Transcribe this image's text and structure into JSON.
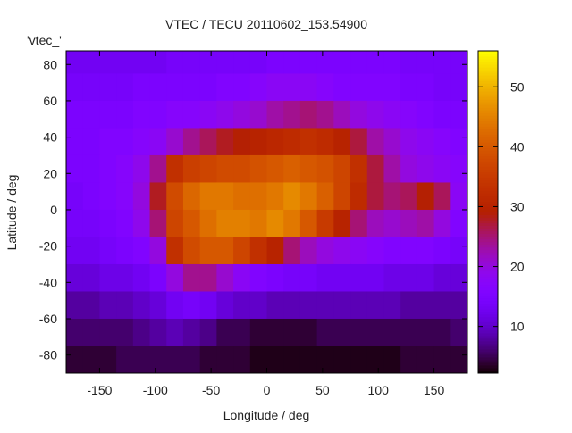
{
  "chart_data": {
    "type": "heatmap",
    "title": "VTEC / TECU 20110602_153.54900",
    "xlabel": "Longitude / deg",
    "ylabel": "Latitude / deg",
    "key_label": "'vtec_'",
    "xlim": [
      -180,
      180
    ],
    "ylim": [
      -90,
      87.5
    ],
    "xticks": [
      -150,
      -100,
      -50,
      0,
      50,
      100,
      150
    ],
    "yticks": [
      -80,
      -60,
      -40,
      -20,
      0,
      20,
      40,
      60,
      80
    ],
    "colorbar": {
      "range": [
        2.2,
        56
      ],
      "ticks": [
        10,
        20,
        30,
        40,
        50
      ],
      "palette": "black-blue-violet-red-yellow"
    },
    "grid_lon_start": -180,
    "grid_lon_step": 15,
    "grid_lat_start": 90,
    "grid_lat_step": -15,
    "values": [
      [
        13,
        13,
        13,
        13,
        13,
        13,
        14,
        14,
        14,
        14,
        14,
        14,
        15,
        15,
        15,
        15,
        15,
        15,
        15,
        15,
        14,
        14,
        14,
        14
      ],
      [
        14,
        14,
        14,
        14,
        15,
        15,
        15,
        15,
        15,
        16,
        16,
        17,
        18,
        18,
        18,
        17,
        16,
        16,
        16,
        16,
        15,
        15,
        14,
        14
      ],
      [
        15,
        15,
        15,
        15,
        16,
        16,
        17,
        17,
        18,
        19,
        20,
        21,
        23,
        24,
        25,
        24,
        22,
        20,
        19,
        18,
        17,
        16,
        15,
        15
      ],
      [
        15,
        15,
        16,
        16,
        17,
        18,
        21,
        24,
        26,
        28,
        29,
        30,
        31,
        32,
        33,
        32,
        30,
        27,
        23,
        21,
        19,
        18,
        17,
        16
      ],
      [
        15,
        15,
        16,
        17,
        19,
        24,
        33,
        36,
        37,
        38,
        38,
        39,
        40,
        41,
        40,
        39,
        37,
        33,
        27,
        23,
        20,
        19,
        18,
        17
      ],
      [
        14,
        15,
        16,
        17,
        20,
        28,
        38,
        42,
        44,
        44,
        43,
        43,
        44,
        46,
        44,
        41,
        37,
        32,
        27,
        25,
        26,
        29,
        26,
        18
      ],
      [
        14,
        14,
        15,
        16,
        19,
        25,
        37,
        40,
        43,
        45,
        45,
        44,
        46,
        44,
        40,
        35,
        30,
        25,
        22,
        21,
        22,
        23,
        20,
        16
      ],
      [
        13,
        13,
        14,
        15,
        16,
        20,
        33,
        38,
        40,
        40,
        37,
        33,
        30,
        25,
        22,
        20,
        19,
        18,
        17,
        16,
        16,
        16,
        15,
        14
      ],
      [
        11,
        11,
        12,
        12,
        13,
        15,
        20,
        24,
        24,
        21,
        18,
        16,
        15,
        14,
        14,
        13,
        13,
        13,
        13,
        12,
        12,
        12,
        11,
        11
      ],
      [
        8,
        8,
        9,
        9,
        10,
        11,
        13,
        14,
        13,
        11,
        10,
        10,
        9,
        9,
        9,
        9,
        9,
        9,
        9,
        9,
        8,
        8,
        8,
        8
      ],
      [
        6,
        6,
        6,
        6,
        7,
        8,
        9,
        8,
        7,
        5,
        5,
        4,
        4,
        4,
        4,
        5,
        5,
        5,
        5,
        5,
        5,
        5,
        5,
        6
      ],
      [
        4,
        4,
        4,
        5,
        5,
        5,
        5,
        5,
        4,
        4,
        4,
        3,
        3,
        3,
        3,
        3,
        3,
        3,
        3,
        3,
        4,
        4,
        4,
        4
      ]
    ]
  }
}
